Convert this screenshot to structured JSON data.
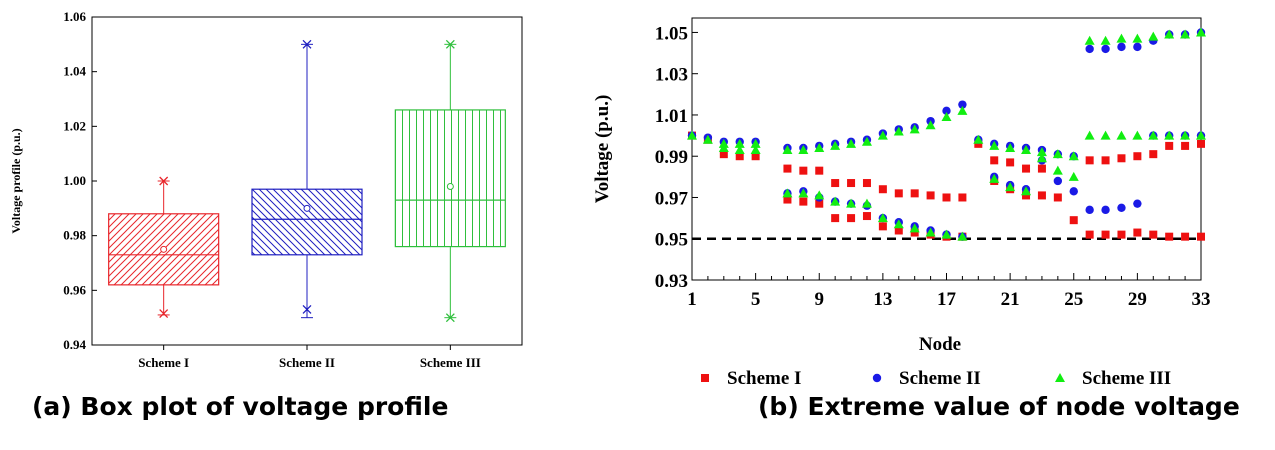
{
  "chart_data": [
    {
      "type": "box",
      "title": "",
      "xlabel": "",
      "ylabel": "Voltage profile (p.u.)",
      "ylim": [
        0.94,
        1.06
      ],
      "yticks": [
        "0.94",
        "0.96",
        "0.98",
        "1.00",
        "1.02",
        "1.04",
        "1.06"
      ],
      "grid": false,
      "legend": "none",
      "boxes": [
        {
          "name": "Scheme I",
          "color": "#e8262b",
          "hatch": "forward-diagonal",
          "whisker_low": 0.951,
          "q1": 0.962,
          "median": 0.973,
          "mean": 0.975,
          "q3": 0.988,
          "whisker_high": 1.0,
          "markers": [
            0.9515,
            1.0
          ]
        },
        {
          "name": "Scheme II",
          "color": "#1f1fc0",
          "hatch": "back-diagonal",
          "whisker_low": 0.95,
          "q1": 0.973,
          "median": 0.986,
          "mean": 0.99,
          "q3": 0.997,
          "whisker_high": 1.05,
          "markers": [
            0.953,
            1.05
          ]
        },
        {
          "name": "Scheme III",
          "color": "#2fbf3c",
          "hatch": "vertical",
          "whisker_low": 0.95,
          "q1": 0.976,
          "median": 0.993,
          "mean": 0.998,
          "q3": 1.026,
          "whisker_high": 1.05,
          "markers": [
            0.95,
            1.05
          ]
        }
      ]
    },
    {
      "type": "scatter",
      "title": "",
      "xlabel": "Node",
      "ylabel": "Voltage (p.u.)",
      "xlim": [
        1,
        33
      ],
      "ylim": [
        0.93,
        1.057
      ],
      "xticks": [
        "1",
        "5",
        "9",
        "13",
        "17",
        "21",
        "25",
        "29",
        "33"
      ],
      "yticks": [
        "0.93",
        "0.95",
        "0.97",
        "0.99",
        "1.01",
        "1.03",
        "1.05"
      ],
      "reference_line": {
        "y": 0.95,
        "style": "dashed",
        "color": "#000000"
      },
      "legend": "bottom",
      "series": [
        {
          "name": "Scheme I",
          "marker": "square",
          "color": "#ee1111",
          "max": [
            [
              1,
              1.0
            ],
            [
              2,
              0.998
            ],
            [
              3,
              0.991
            ],
            [
              4,
              0.99
            ],
            [
              5,
              0.99
            ],
            [
              7,
              0.984
            ],
            [
              8,
              0.983
            ],
            [
              9,
              0.983
            ],
            [
              10,
              0.977
            ],
            [
              11,
              0.977
            ],
            [
              12,
              0.977
            ],
            [
              13,
              0.974
            ],
            [
              14,
              0.972
            ],
            [
              15,
              0.972
            ],
            [
              16,
              0.971
            ],
            [
              17,
              0.97
            ],
            [
              18,
              0.97
            ],
            [
              19,
              0.996
            ],
            [
              20,
              0.988
            ],
            [
              21,
              0.987
            ],
            [
              22,
              0.984
            ],
            [
              23,
              0.984
            ],
            [
              24,
              0.97
            ],
            [
              25,
              0.959
            ],
            [
              26,
              0.988
            ],
            [
              27,
              0.988
            ],
            [
              28,
              0.989
            ],
            [
              29,
              0.99
            ],
            [
              30,
              0.991
            ],
            [
              31,
              0.995
            ],
            [
              32,
              0.995
            ],
            [
              33,
              0.996
            ]
          ],
          "min": [
            [
              7,
              0.969
            ],
            [
              8,
              0.968
            ],
            [
              9,
              0.967
            ],
            [
              10,
              0.96
            ],
            [
              11,
              0.96
            ],
            [
              12,
              0.961
            ],
            [
              13,
              0.956
            ],
            [
              14,
              0.954
            ],
            [
              15,
              0.953
            ],
            [
              16,
              0.952
            ],
            [
              17,
              0.951
            ],
            [
              18,
              0.951
            ],
            [
              20,
              0.978
            ],
            [
              21,
              0.974
            ],
            [
              22,
              0.971
            ],
            [
              23,
              0.971
            ],
            [
              26,
              0.952
            ],
            [
              27,
              0.952
            ],
            [
              28,
              0.952
            ],
            [
              29,
              0.953
            ],
            [
              30,
              0.952
            ],
            [
              31,
              0.951
            ],
            [
              32,
              0.951
            ],
            [
              33,
              0.951
            ]
          ]
        },
        {
          "name": "Scheme II",
          "marker": "circle",
          "color": "#1a1ae6",
          "max": [
            [
              1,
              1.0
            ],
            [
              2,
              0.999
            ],
            [
              3,
              0.997
            ],
            [
              4,
              0.997
            ],
            [
              5,
              0.997
            ],
            [
              7,
              0.994
            ],
            [
              8,
              0.994
            ],
            [
              9,
              0.995
            ],
            [
              10,
              0.996
            ],
            [
              11,
              0.997
            ],
            [
              12,
              0.998
            ],
            [
              13,
              1.001
            ],
            [
              14,
              1.003
            ],
            [
              15,
              1.004
            ],
            [
              16,
              1.007
            ],
            [
              17,
              1.012
            ],
            [
              18,
              1.015
            ],
            [
              19,
              0.998
            ],
            [
              20,
              0.996
            ],
            [
              21,
              0.995
            ],
            [
              22,
              0.994
            ],
            [
              23,
              0.993
            ],
            [
              24,
              0.991
            ],
            [
              25,
              0.99
            ],
            [
              26,
              1.042
            ],
            [
              27,
              1.042
            ],
            [
              28,
              1.043
            ],
            [
              29,
              1.043
            ],
            [
              30,
              1.046
            ],
            [
              31,
              1.049
            ],
            [
              32,
              1.049
            ],
            [
              33,
              1.05
            ]
          ],
          "min": [
            [
              7,
              0.972
            ],
            [
              8,
              0.973
            ],
            [
              9,
              0.97
            ],
            [
              10,
              0.968
            ],
            [
              11,
              0.967
            ],
            [
              12,
              0.966
            ],
            [
              13,
              0.96
            ],
            [
              14,
              0.958
            ],
            [
              15,
              0.956
            ],
            [
              16,
              0.954
            ],
            [
              17,
              0.952
            ],
            [
              18,
              0.951
            ],
            [
              20,
              0.98
            ],
            [
              21,
              0.976
            ],
            [
              22,
              0.974
            ],
            [
              23,
              0.988
            ],
            [
              24,
              0.978
            ],
            [
              25,
              0.973
            ],
            [
              26,
              0.964
            ],
            [
              27,
              0.964
            ],
            [
              28,
              0.965
            ],
            [
              29,
              0.967
            ],
            [
              30,
              1.0
            ],
            [
              31,
              1.0
            ],
            [
              32,
              1.0
            ],
            [
              33,
              1.0
            ]
          ]
        },
        {
          "name": "Scheme III",
          "marker": "triangle",
          "color": "#11ee11",
          "max": [
            [
              1,
              1.0
            ],
            [
              2,
              0.998
            ],
            [
              3,
              0.996
            ],
            [
              4,
              0.996
            ],
            [
              5,
              0.996
            ],
            [
              7,
              0.993
            ],
            [
              8,
              0.993
            ],
            [
              9,
              0.994
            ],
            [
              10,
              0.995
            ],
            [
              11,
              0.996
            ],
            [
              12,
              0.997
            ],
            [
              13,
              1.0
            ],
            [
              14,
              1.002
            ],
            [
              15,
              1.003
            ],
            [
              16,
              1.005
            ],
            [
              17,
              1.009
            ],
            [
              18,
              1.012
            ],
            [
              19,
              0.998
            ],
            [
              20,
              0.995
            ],
            [
              21,
              0.994
            ],
            [
              22,
              0.993
            ],
            [
              23,
              0.992
            ],
            [
              24,
              0.991
            ],
            [
              25,
              0.99
            ],
            [
              26,
              1.046
            ],
            [
              27,
              1.046
            ],
            [
              28,
              1.047
            ],
            [
              29,
              1.047
            ],
            [
              30,
              1.048
            ],
            [
              31,
              1.049
            ],
            [
              32,
              1.049
            ],
            [
              33,
              1.05
            ]
          ],
          "min": [
            [
              3,
              0.994
            ],
            [
              4,
              0.993
            ],
            [
              5,
              0.993
            ],
            [
              7,
              0.972
            ],
            [
              8,
              0.972
            ],
            [
              9,
              0.971
            ],
            [
              10,
              0.968
            ],
            [
              11,
              0.967
            ],
            [
              12,
              0.967
            ],
            [
              13,
              0.96
            ],
            [
              14,
              0.957
            ],
            [
              15,
              0.955
            ],
            [
              16,
              0.953
            ],
            [
              17,
              0.952
            ],
            [
              18,
              0.951
            ],
            [
              20,
              0.979
            ],
            [
              21,
              0.975
            ],
            [
              22,
              0.973
            ],
            [
              23,
              0.989
            ],
            [
              24,
              0.983
            ],
            [
              25,
              0.98
            ],
            [
              26,
              1.0
            ],
            [
              27,
              1.0
            ],
            [
              28,
              1.0
            ],
            [
              29,
              1.0
            ],
            [
              30,
              1.0
            ],
            [
              31,
              1.0
            ],
            [
              32,
              1.0
            ],
            [
              33,
              1.0
            ]
          ]
        }
      ]
    }
  ],
  "captions": {
    "a": "(a) Box plot of voltage profile",
    "b": "(b) Extreme value of node voltage"
  }
}
